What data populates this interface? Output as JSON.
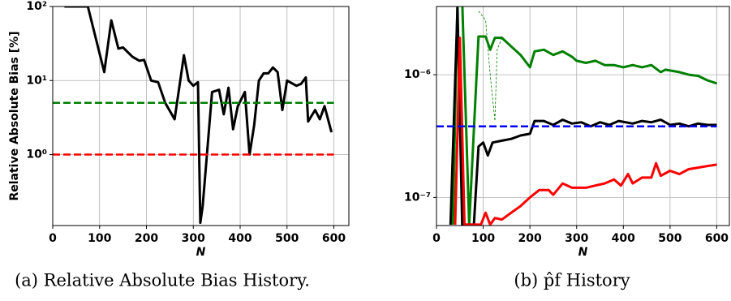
{
  "chart_data": [
    {
      "type": "line",
      "ylabel": "Relative Absolute Bias [%]",
      "xlabel": "N",
      "caption": "(a) Relative Absolute Bias History.",
      "log_y": true,
      "grid": true,
      "xlim": [
        0,
        632
      ],
      "ylim": [
        0.11,
        100
      ],
      "xticks": [
        0,
        100,
        200,
        300,
        400,
        500,
        600
      ],
      "yticks": [
        {
          "value": 1,
          "label": "10⁰"
        },
        {
          "value": 10,
          "label": "10¹"
        },
        {
          "value": 100,
          "label": "10²"
        }
      ],
      "series": [
        {
          "color": "#000000",
          "dashed": false,
          "x": [
            25,
            50,
            75,
            110,
            125,
            140,
            150,
            170,
            185,
            195,
            210,
            225,
            240,
            260,
            270,
            280,
            290,
            300,
            310,
            315,
            320,
            340,
            355,
            365,
            375,
            385,
            395,
            410,
            420,
            430,
            440,
            450,
            460,
            470,
            480,
            490,
            500,
            520,
            530,
            540,
            545,
            560,
            570,
            580,
            595
          ],
          "values": [
            100,
            100,
            100,
            13,
            65,
            27,
            28,
            21,
            18.5,
            19,
            10,
            9.5,
            5,
            3,
            8,
            22,
            10,
            8.5,
            9.5,
            0.12,
            0.2,
            7,
            7.5,
            3.5,
            8,
            2.2,
            4.5,
            7,
            1,
            2.5,
            10,
            12.5,
            12.5,
            15,
            13,
            4,
            10,
            8.5,
            9,
            11,
            2.8,
            4,
            3,
            4.5,
            2
          ]
        },
        {
          "color": "#008000",
          "dashed": true,
          "x": [
            0,
            600
          ],
          "values": [
            5,
            5
          ]
        },
        {
          "color": "#ff0000",
          "dashed": true,
          "x": [
            0,
            600
          ],
          "values": [
            1,
            1
          ]
        }
      ]
    },
    {
      "type": "line",
      "xlabel": "N",
      "caption": "(b) p̂f History",
      "log_y": true,
      "grid": true,
      "xlim": [
        0,
        627
      ],
      "ylim": [
        5.9e-08,
        3.6e-06
      ],
      "xticks": [
        0,
        100,
        200,
        300,
        400,
        500,
        600
      ],
      "yticks": [
        {
          "value": 1e-07,
          "label": "10⁻⁷"
        },
        {
          "value": 1e-06,
          "label": "10⁻⁶"
        }
      ],
      "series": [
        {
          "color": "#008000",
          "dashed": false,
          "x": [
            35,
            45,
            55,
            70,
            90,
            105,
            115,
            125,
            140,
            160,
            180,
            200,
            210,
            230,
            250,
            270,
            290,
            300,
            320,
            340,
            360,
            380,
            400,
            420,
            440,
            460,
            480,
            490,
            520,
            540,
            560,
            580,
            600
          ],
          "values": [
            6e-08,
            4e-06,
            4e-06,
            6e-08,
            2.05e-06,
            2.05e-06,
            1.6e-06,
            2e-06,
            2e-06,
            1.7e-06,
            1.45e-06,
            1.15e-06,
            1.55e-06,
            1.6e-06,
            1.45e-06,
            1.55e-06,
            1.4e-06,
            1.3e-06,
            1.25e-06,
            1.3e-06,
            1.2e-06,
            1.2e-06,
            1.15e-06,
            1.2e-06,
            1.15e-06,
            1.2e-06,
            1.05e-06,
            1.1e-06,
            1.05e-06,
            1e-06,
            9.8e-07,
            9e-07,
            8.5e-07
          ]
        },
        {
          "color": "#008000",
          "dashed": true,
          "thin": true,
          "x": [
            90,
            105,
            115,
            125,
            130,
            140
          ],
          "values": [
            3.3e-06,
            2.8e-06,
            1e-06,
            4.2e-07,
            1.6e-06,
            2e-06
          ]
        },
        {
          "color": "#000000",
          "dashed": false,
          "x": [
            30,
            45,
            55,
            80,
            90,
            100,
            110,
            120,
            140,
            160,
            180,
            200,
            210,
            230,
            250,
            270,
            290,
            310,
            330,
            350,
            370,
            390,
            420,
            440,
            460,
            480,
            500,
            520,
            540,
            560,
            580,
            600
          ],
          "values": [
            6e-08,
            3.5e-06,
            6e-08,
            6e-08,
            2.6e-07,
            2.8e-07,
            2.2e-07,
            2.8e-07,
            2.9e-07,
            3e-07,
            3.2e-07,
            3.3e-07,
            4.2e-07,
            4.2e-07,
            3.9e-07,
            4.3e-07,
            4e-07,
            4.1e-07,
            3.8e-07,
            4.1e-07,
            3.9e-07,
            4.2e-07,
            4e-07,
            4.2e-07,
            4.1e-07,
            4.3e-07,
            3.9e-07,
            4e-07,
            3.8e-07,
            4e-07,
            3.9e-07,
            3.9e-07
          ]
        },
        {
          "color": "#ff0000",
          "dashed": false,
          "x": [
            40,
            50,
            60,
            95,
            105,
            115,
            125,
            140,
            160,
            180,
            200,
            220,
            240,
            250,
            270,
            290,
            320,
            340,
            360,
            380,
            395,
            410,
            420,
            440,
            460,
            470,
            480,
            500,
            520,
            540,
            560,
            580,
            600
          ],
          "values": [
            6e-08,
            2e-06,
            6e-08,
            6e-08,
            7.5e-08,
            6e-08,
            6.8e-08,
            6.6e-08,
            7.5e-08,
            8.5e-08,
            1e-07,
            1.15e-07,
            1.15e-07,
            1.05e-07,
            1.3e-07,
            1.2e-07,
            1.2e-07,
            1.25e-07,
            1.3e-07,
            1.4e-07,
            1.25e-07,
            1.55e-07,
            1.3e-07,
            1.45e-07,
            1.45e-07,
            1.9e-07,
            1.5e-07,
            1.65e-07,
            1.55e-07,
            1.7e-07,
            1.75e-07,
            1.8e-07,
            1.85e-07
          ]
        },
        {
          "color": "#0000ff",
          "dashed": true,
          "x": [
            0,
            600
          ],
          "values": [
            3.8e-07,
            3.8e-07
          ]
        }
      ]
    }
  ]
}
